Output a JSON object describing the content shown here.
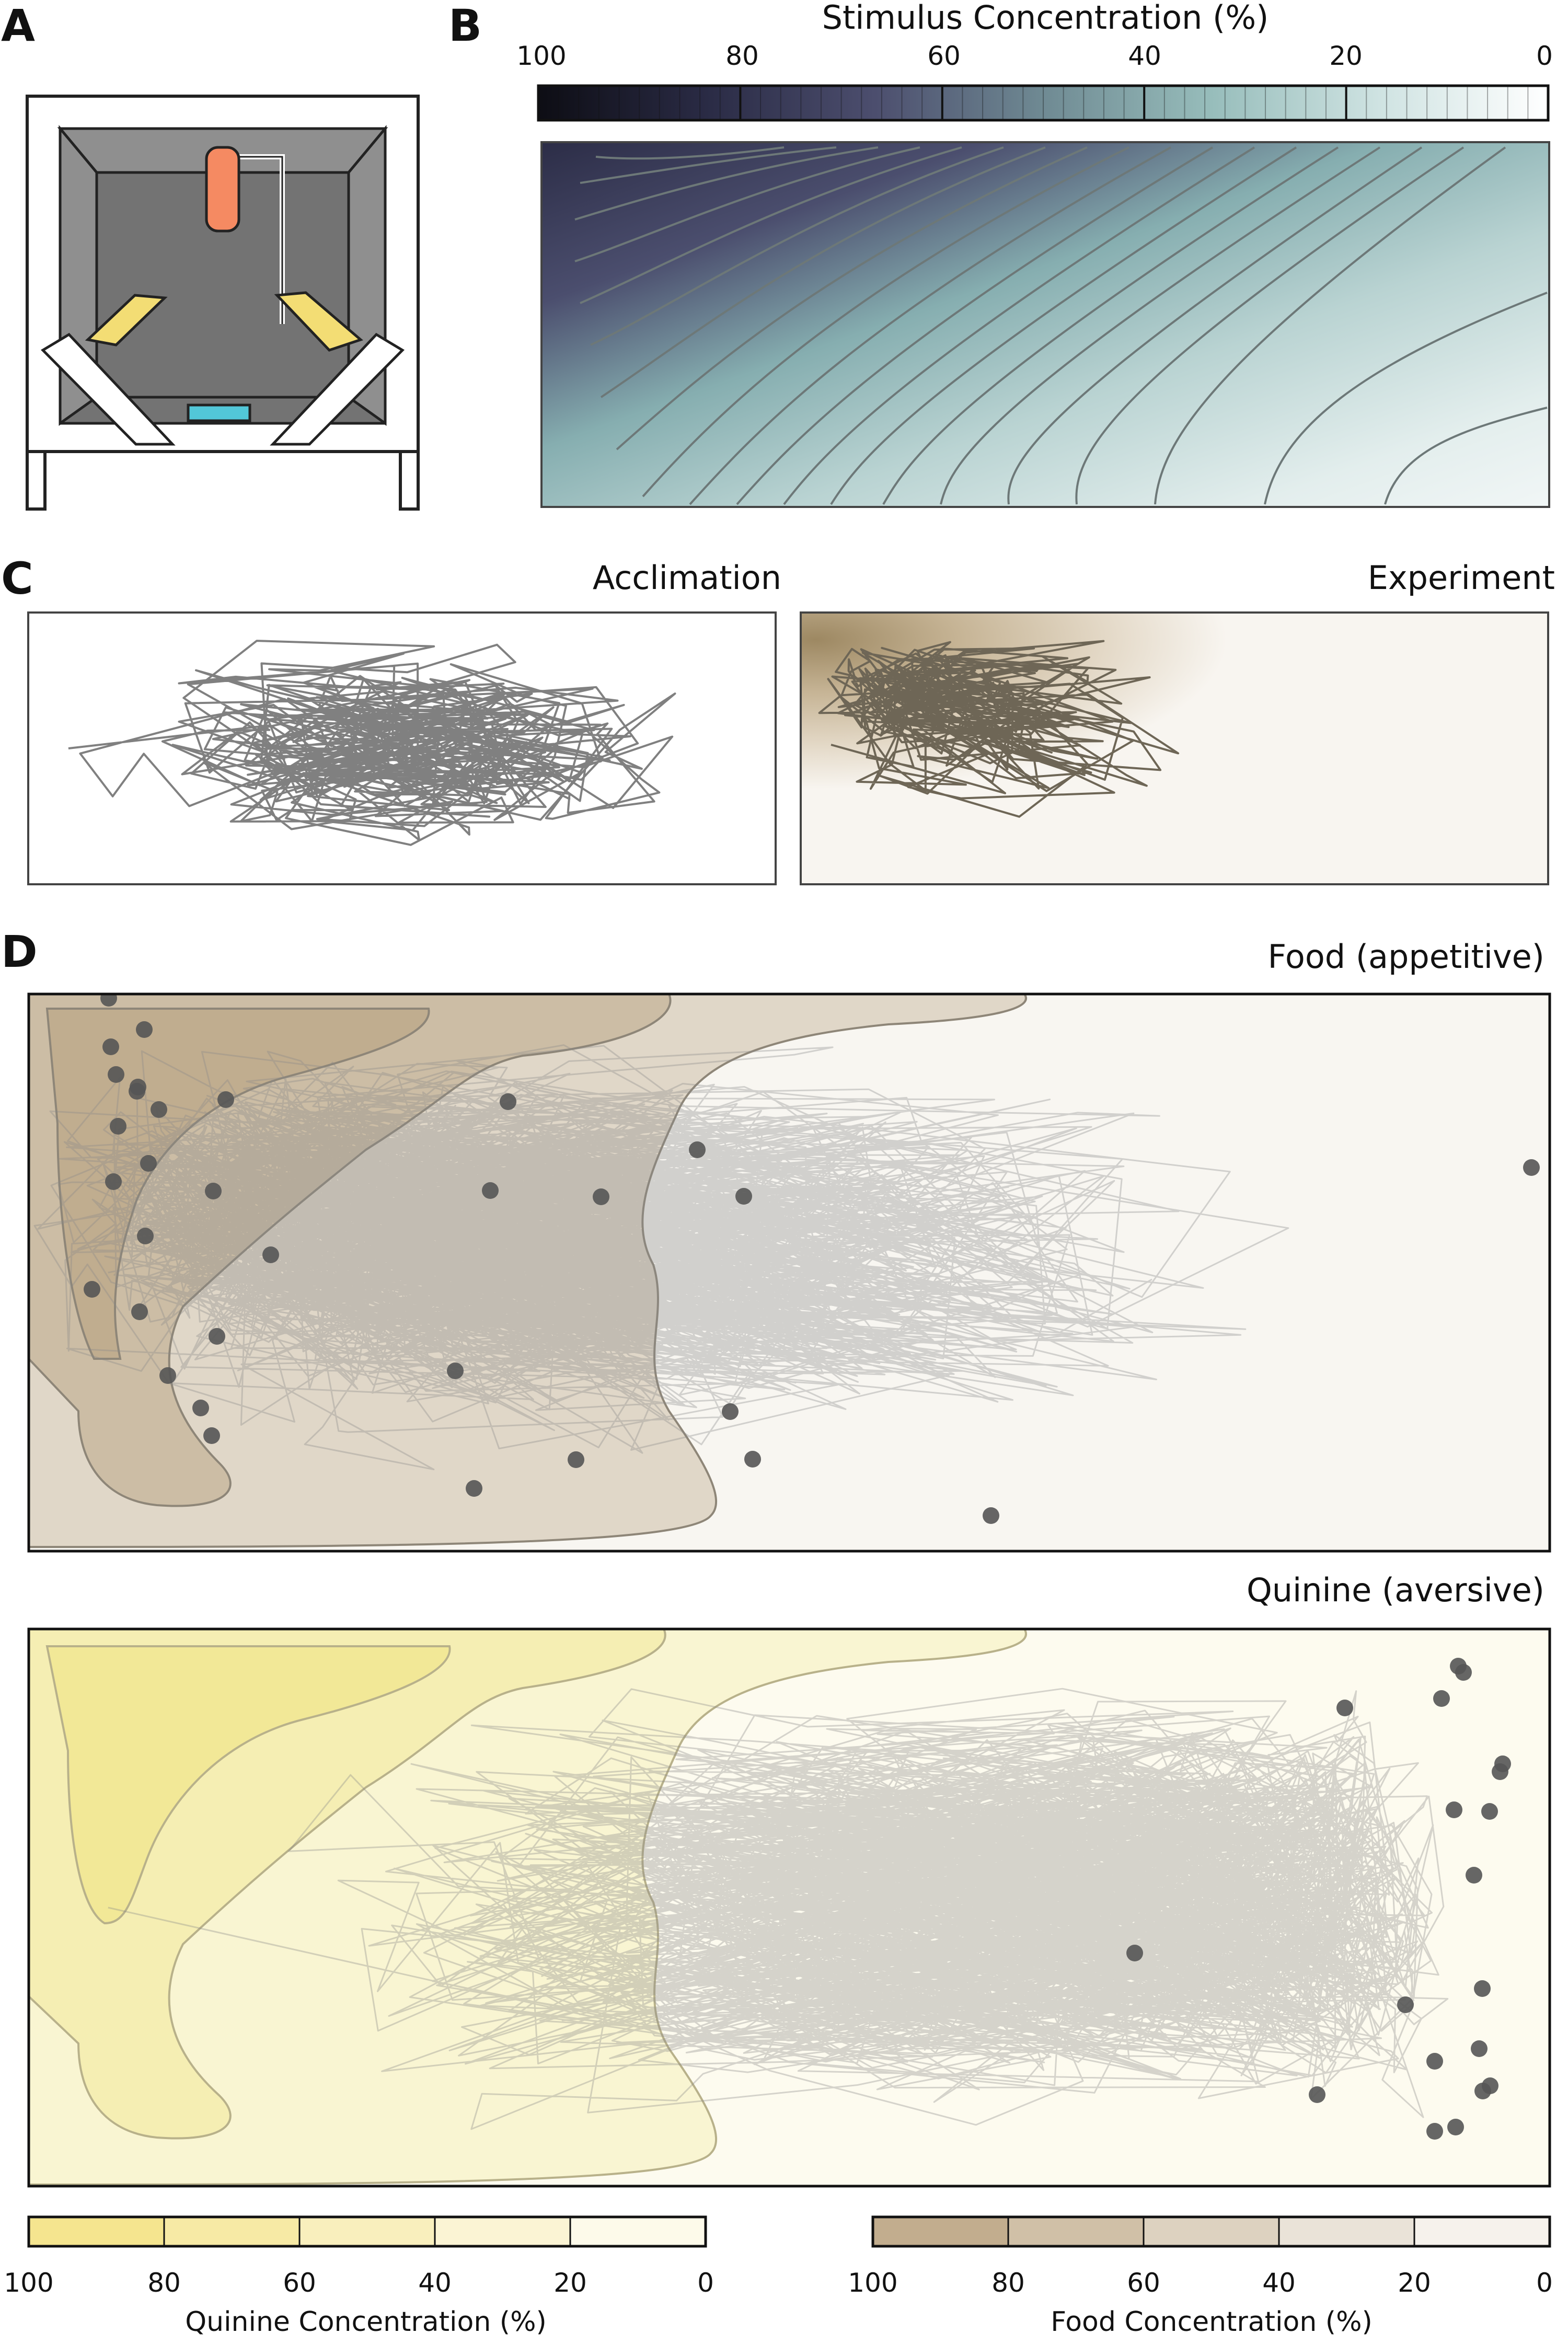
{
  "panels": {
    "a": "A",
    "b": "B",
    "c": "C",
    "d": "D"
  },
  "apparatus": {
    "frame_color": "#ffffff",
    "wall_color": "#8f8f8f",
    "back_color": "#737373",
    "stimulus_source_color": "#f58a62",
    "lamp_color": "#f3dd74",
    "dish_color": "#52c7d8"
  },
  "panel_b": {
    "colorbar_title": "Stimulus Concentration (%)",
    "ticks": [
      "100",
      "80",
      "60",
      "40",
      "20",
      "0"
    ],
    "colormap": [
      "#0d0d14",
      "#2a2b45",
      "#4c4e6e",
      "#6f8a93",
      "#97bdbb",
      "#cfe3e2",
      "#ffffff"
    ]
  },
  "panel_c": {
    "left_title": "Acclimation",
    "right_title": "Experiment",
    "trace_color": "#808080",
    "field_color": "#bba684"
  },
  "panel_d": {
    "top_title": "Food (appetitive)",
    "bottom_title": "Quinine (aversive)",
    "food_color": "#b49d7a",
    "quinine_color": "#efe27c",
    "dot_color": "#555555"
  },
  "colorbars": {
    "quinine": {
      "label": "Quinine Concentration (%)",
      "ticks": [
        "100",
        "80",
        "60",
        "40",
        "20",
        "0"
      ],
      "colors": [
        "#f5e58f",
        "#f7eaa5",
        "#f9efbd",
        "#fbf4d4",
        "#fdfaea"
      ]
    },
    "food": {
      "label": "Food Concentration (%)",
      "ticks": [
        "100",
        "80",
        "60",
        "40",
        "20",
        "0"
      ],
      "colors": [
        "#c2ad8e",
        "#d0c0a7",
        "#ddd2c0",
        "#eae3d8",
        "#f6f2ec"
      ]
    }
  }
}
